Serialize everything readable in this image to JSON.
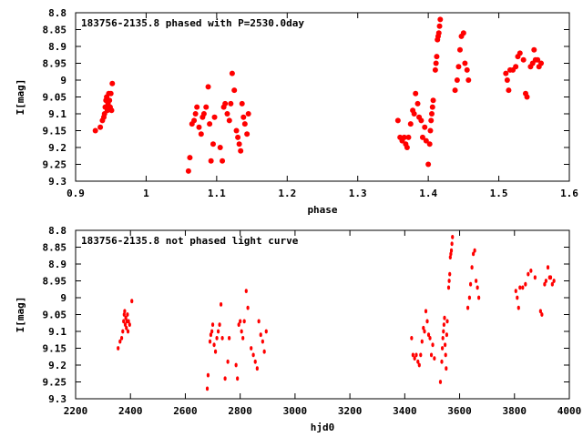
{
  "colors": {
    "points": "#ff0000",
    "frame": "#000000",
    "background": "#ffffff"
  },
  "chart_data": [
    {
      "type": "scatter",
      "title": "183756-2135.8 phased with P=2530.0day",
      "xlabel": "phase",
      "ylabel": "I[mag]",
      "xlim": [
        0.9,
        1.6
      ],
      "ylim": [
        8.8,
        9.3
      ],
      "y_inverted": true,
      "grid": false,
      "legend": "none",
      "x_ticks": [
        "0.9",
        "1",
        "1.1",
        "1.2",
        "1.3",
        "1.4",
        "1.5",
        "1.6"
      ],
      "y_ticks": [
        "8.8",
        "8.85",
        "8.9",
        "8.95",
        "9",
        "9.05",
        "9.1",
        "9.15",
        "9.2",
        "9.25",
        "9.3"
      ],
      "x_tick_values": [
        0.9,
        1.0,
        1.1,
        1.2,
        1.3,
        1.4,
        1.5,
        1.6
      ],
      "y_tick_values": [
        8.8,
        8.85,
        8.9,
        8.95,
        9.0,
        9.05,
        9.1,
        9.15,
        9.2,
        9.25,
        9.3
      ],
      "points": [
        [
          0.928,
          9.15
        ],
        [
          0.935,
          9.14
        ],
        [
          0.938,
          9.12
        ],
        [
          0.94,
          9.11
        ],
        [
          0.941,
          9.1
        ],
        [
          0.942,
          9.08
        ],
        [
          0.943,
          9.06
        ],
        [
          0.944,
          9.05
        ],
        [
          0.945,
          9.09
        ],
        [
          0.946,
          9.07
        ],
        [
          0.947,
          9.04
        ],
        [
          0.948,
          9.06
        ],
        [
          0.949,
          9.08
        ],
        [
          0.95,
          9.04
        ],
        [
          0.951,
          9.09
        ],
        [
          0.952,
          9.01
        ],
        [
          1.06,
          9.27
        ],
        [
          1.062,
          9.23
        ],
        [
          1.065,
          9.13
        ],
        [
          1.068,
          9.12
        ],
        [
          1.07,
          9.1
        ],
        [
          1.072,
          9.08
        ],
        [
          1.075,
          9.14
        ],
        [
          1.078,
          9.16
        ],
        [
          1.08,
          9.11
        ],
        [
          1.082,
          9.1
        ],
        [
          1.085,
          9.08
        ],
        [
          1.088,
          9.02
        ],
        [
          1.09,
          9.13
        ],
        [
          1.092,
          9.24
        ],
        [
          1.095,
          9.19
        ],
        [
          1.097,
          9.11
        ],
        [
          1.105,
          9.2
        ],
        [
          1.108,
          9.24
        ],
        [
          1.11,
          9.08
        ],
        [
          1.112,
          9.07
        ],
        [
          1.115,
          9.1
        ],
        [
          1.118,
          9.12
        ],
        [
          1.12,
          9.07
        ],
        [
          1.122,
          8.98
        ],
        [
          1.125,
          9.03
        ],
        [
          1.128,
          9.15
        ],
        [
          1.13,
          9.17
        ],
        [
          1.132,
          9.19
        ],
        [
          1.134,
          9.21
        ],
        [
          1.136,
          9.07
        ],
        [
          1.138,
          9.11
        ],
        [
          1.14,
          9.13
        ],
        [
          1.143,
          9.16
        ],
        [
          1.145,
          9.1
        ],
        [
          1.357,
          9.12
        ],
        [
          1.36,
          9.17
        ],
        [
          1.363,
          9.18
        ],
        [
          1.366,
          9.17
        ],
        [
          1.368,
          9.19
        ],
        [
          1.37,
          9.2
        ],
        [
          1.372,
          9.17
        ],
        [
          1.375,
          9.13
        ],
        [
          1.378,
          9.09
        ],
        [
          1.38,
          9.1
        ],
        [
          1.382,
          9.04
        ],
        [
          1.385,
          9.07
        ],
        [
          1.387,
          9.11
        ],
        [
          1.39,
          9.12
        ],
        [
          1.392,
          9.17
        ],
        [
          1.395,
          9.14
        ],
        [
          1.397,
          9.18
        ],
        [
          1.4,
          9.25
        ],
        [
          1.402,
          9.19
        ],
        [
          1.403,
          9.15
        ],
        [
          1.404,
          9.12
        ],
        [
          1.405,
          9.1
        ],
        [
          1.406,
          9.08
        ],
        [
          1.407,
          9.06
        ],
        [
          1.41,
          8.97
        ],
        [
          1.411,
          8.95
        ],
        [
          1.412,
          8.93
        ],
        [
          1.413,
          8.88
        ],
        [
          1.414,
          8.87
        ],
        [
          1.415,
          8.86
        ],
        [
          1.416,
          8.84
        ],
        [
          1.417,
          8.82
        ],
        [
          1.438,
          9.03
        ],
        [
          1.441,
          9.0
        ],
        [
          1.443,
          8.96
        ],
        [
          1.445,
          8.91
        ],
        [
          1.447,
          8.87
        ],
        [
          1.45,
          8.86
        ],
        [
          1.452,
          8.95
        ],
        [
          1.455,
          8.97
        ],
        [
          1.457,
          9.0
        ],
        [
          1.51,
          8.98
        ],
        [
          1.512,
          9.0
        ],
        [
          1.514,
          9.03
        ],
        [
          1.516,
          8.97
        ],
        [
          1.52,
          8.97
        ],
        [
          1.524,
          8.96
        ],
        [
          1.527,
          8.93
        ],
        [
          1.53,
          8.92
        ],
        [
          1.535,
          8.94
        ],
        [
          1.538,
          9.04
        ],
        [
          1.54,
          9.05
        ],
        [
          1.545,
          8.96
        ],
        [
          1.548,
          8.95
        ],
        [
          1.55,
          8.91
        ],
        [
          1.552,
          8.94
        ],
        [
          1.555,
          8.94
        ],
        [
          1.557,
          8.96
        ],
        [
          1.56,
          8.95
        ]
      ]
    },
    {
      "type": "scatter",
      "title": "183756-2135.8 not phased light curve",
      "xlabel": "hjd0",
      "ylabel": "I[mag]",
      "xlim": [
        2200,
        4000
      ],
      "ylim": [
        8.8,
        9.3
      ],
      "y_inverted": true,
      "grid": false,
      "legend": "none",
      "x_ticks": [
        "2200",
        "2400",
        "2600",
        "2800",
        "3000",
        "3200",
        "3400",
        "3600",
        "3800",
        "4000"
      ],
      "y_ticks": [
        "8.8",
        "8.85",
        "8.9",
        "8.95",
        "9",
        "9.05",
        "9.1",
        "9.15",
        "9.2",
        "9.25",
        "9.3"
      ],
      "x_tick_values": [
        2200,
        2400,
        2600,
        2800,
        3000,
        3200,
        3400,
        3600,
        3800,
        4000
      ],
      "y_tick_values": [
        8.8,
        8.85,
        8.9,
        8.95,
        9.0,
        9.05,
        9.1,
        9.15,
        9.2,
        9.25,
        9.3
      ],
      "points": [
        [
          2355,
          9.15
        ],
        [
          2362,
          9.13
        ],
        [
          2368,
          9.12
        ],
        [
          2372,
          9.1
        ],
        [
          2375,
          9.07
        ],
        [
          2377,
          9.05
        ],
        [
          2379,
          9.04
        ],
        [
          2381,
          9.08
        ],
        [
          2383,
          9.06
        ],
        [
          2385,
          9.09
        ],
        [
          2387,
          9.07
        ],
        [
          2389,
          9.05
        ],
        [
          2391,
          9.1
        ],
        [
          2393,
          9.07
        ],
        [
          2397,
          9.08
        ],
        [
          2405,
          9.01
        ],
        [
          2680,
          9.27
        ],
        [
          2683,
          9.23
        ],
        [
          2690,
          9.13
        ],
        [
          2693,
          9.11
        ],
        [
          2697,
          9.1
        ],
        [
          2700,
          9.08
        ],
        [
          2705,
          9.14
        ],
        [
          2710,
          9.16
        ],
        [
          2715,
          9.12
        ],
        [
          2720,
          9.1
        ],
        [
          2725,
          9.08
        ],
        [
          2730,
          9.02
        ],
        [
          2735,
          9.12
        ],
        [
          2745,
          9.24
        ],
        [
          2755,
          9.19
        ],
        [
          2760,
          9.12
        ],
        [
          2785,
          9.2
        ],
        [
          2790,
          9.24
        ],
        [
          2795,
          9.08
        ],
        [
          2800,
          9.07
        ],
        [
          2805,
          9.1
        ],
        [
          2810,
          9.12
        ],
        [
          2815,
          9.07
        ],
        [
          2822,
          8.98
        ],
        [
          2828,
          9.03
        ],
        [
          2840,
          9.15
        ],
        [
          2848,
          9.17
        ],
        [
          2855,
          9.19
        ],
        [
          2862,
          9.21
        ],
        [
          2868,
          9.07
        ],
        [
          2875,
          9.11
        ],
        [
          2882,
          9.13
        ],
        [
          2888,
          9.16
        ],
        [
          2895,
          9.1
        ],
        [
          3425,
          9.12
        ],
        [
          3430,
          9.17
        ],
        [
          3436,
          9.18
        ],
        [
          3442,
          9.17
        ],
        [
          3448,
          9.19
        ],
        [
          3453,
          9.2
        ],
        [
          3458,
          9.17
        ],
        [
          3463,
          9.13
        ],
        [
          3468,
          9.09
        ],
        [
          3472,
          9.1
        ],
        [
          3477,
          9.04
        ],
        [
          3482,
          9.07
        ],
        [
          3487,
          9.11
        ],
        [
          3492,
          9.12
        ],
        [
          3497,
          9.17
        ],
        [
          3502,
          9.14
        ],
        [
          3508,
          9.18
        ],
        [
          3530,
          9.25
        ],
        [
          3535,
          9.19
        ],
        [
          3537,
          9.15
        ],
        [
          3539,
          9.12
        ],
        [
          3541,
          9.1
        ],
        [
          3543,
          9.08
        ],
        [
          3545,
          9.06
        ],
        [
          3547,
          9.14
        ],
        [
          3549,
          9.17
        ],
        [
          3551,
          9.21
        ],
        [
          3553,
          9.11
        ],
        [
          3555,
          9.07
        ],
        [
          3560,
          8.97
        ],
        [
          3562,
          8.95
        ],
        [
          3564,
          8.93
        ],
        [
          3566,
          8.88
        ],
        [
          3568,
          8.87
        ],
        [
          3570,
          8.86
        ],
        [
          3572,
          8.84
        ],
        [
          3574,
          8.82
        ],
        [
          3630,
          9.03
        ],
        [
          3636,
          9.0
        ],
        [
          3640,
          8.96
        ],
        [
          3645,
          8.91
        ],
        [
          3650,
          8.87
        ],
        [
          3655,
          8.86
        ],
        [
          3660,
          8.95
        ],
        [
          3665,
          8.97
        ],
        [
          3670,
          9.0
        ],
        [
          3805,
          8.98
        ],
        [
          3810,
          9.0
        ],
        [
          3815,
          9.03
        ],
        [
          3820,
          8.97
        ],
        [
          3830,
          8.97
        ],
        [
          3840,
          8.96
        ],
        [
          3850,
          8.93
        ],
        [
          3860,
          8.92
        ],
        [
          3875,
          8.94
        ],
        [
          3895,
          9.04
        ],
        [
          3900,
          9.05
        ],
        [
          3910,
          8.96
        ],
        [
          3915,
          8.95
        ],
        [
          3922,
          8.91
        ],
        [
          3928,
          8.94
        ],
        [
          3932,
          8.94
        ],
        [
          3938,
          8.96
        ],
        [
          3944,
          8.95
        ]
      ]
    }
  ]
}
